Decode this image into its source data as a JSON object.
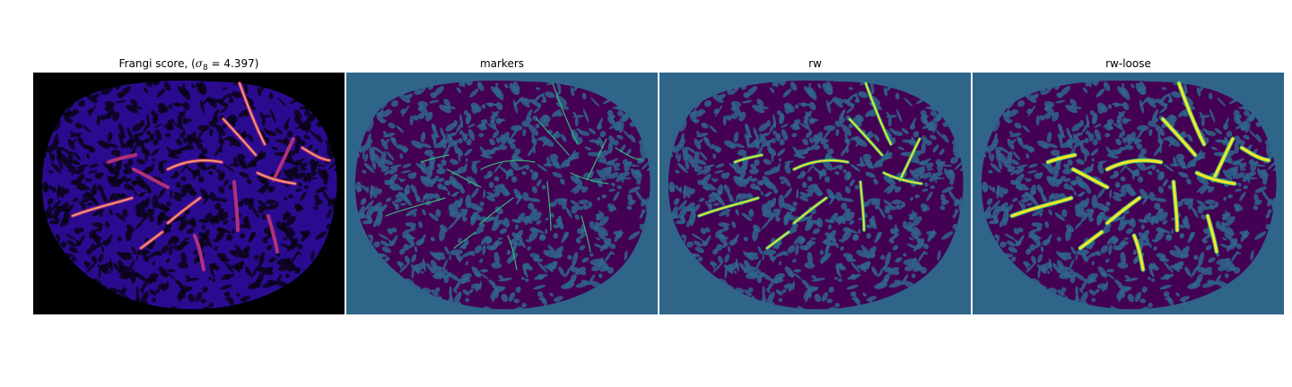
{
  "figure": {
    "panels": [
      {
        "title_prefix": "Frangi score, (",
        "title_sigma": "σ",
        "title_sub": "8",
        "title_suffix": " = 4.397)",
        "colormap": "magma"
      },
      {
        "title": "markers",
        "colormap": "viridis"
      },
      {
        "title": "rw",
        "colormap": "viridis"
      },
      {
        "title": "rw-loose",
        "colormap": "viridis"
      }
    ],
    "colors": {
      "magma_background": "#000000",
      "magma_tissue": "#2a0b8f",
      "magma_mid": "#b0307a",
      "magma_high": "#fca86a",
      "viridis_background": "#2f6589",
      "viridis_tissue": "#440154",
      "viridis_marker": "#35b779",
      "viridis_vessel": "#fde725"
    }
  },
  "chart_data": [
    {
      "type": "heatmap",
      "title": "Frangi score, (σ8 = 4.397)",
      "colormap": "magma",
      "sigma_index": 8,
      "sigma": 4.397
    },
    {
      "type": "heatmap",
      "title": "markers",
      "colormap": "viridis"
    },
    {
      "type": "heatmap",
      "title": "rw",
      "colormap": "viridis"
    },
    {
      "type": "heatmap",
      "title": "rw-loose",
      "colormap": "viridis"
    }
  ]
}
